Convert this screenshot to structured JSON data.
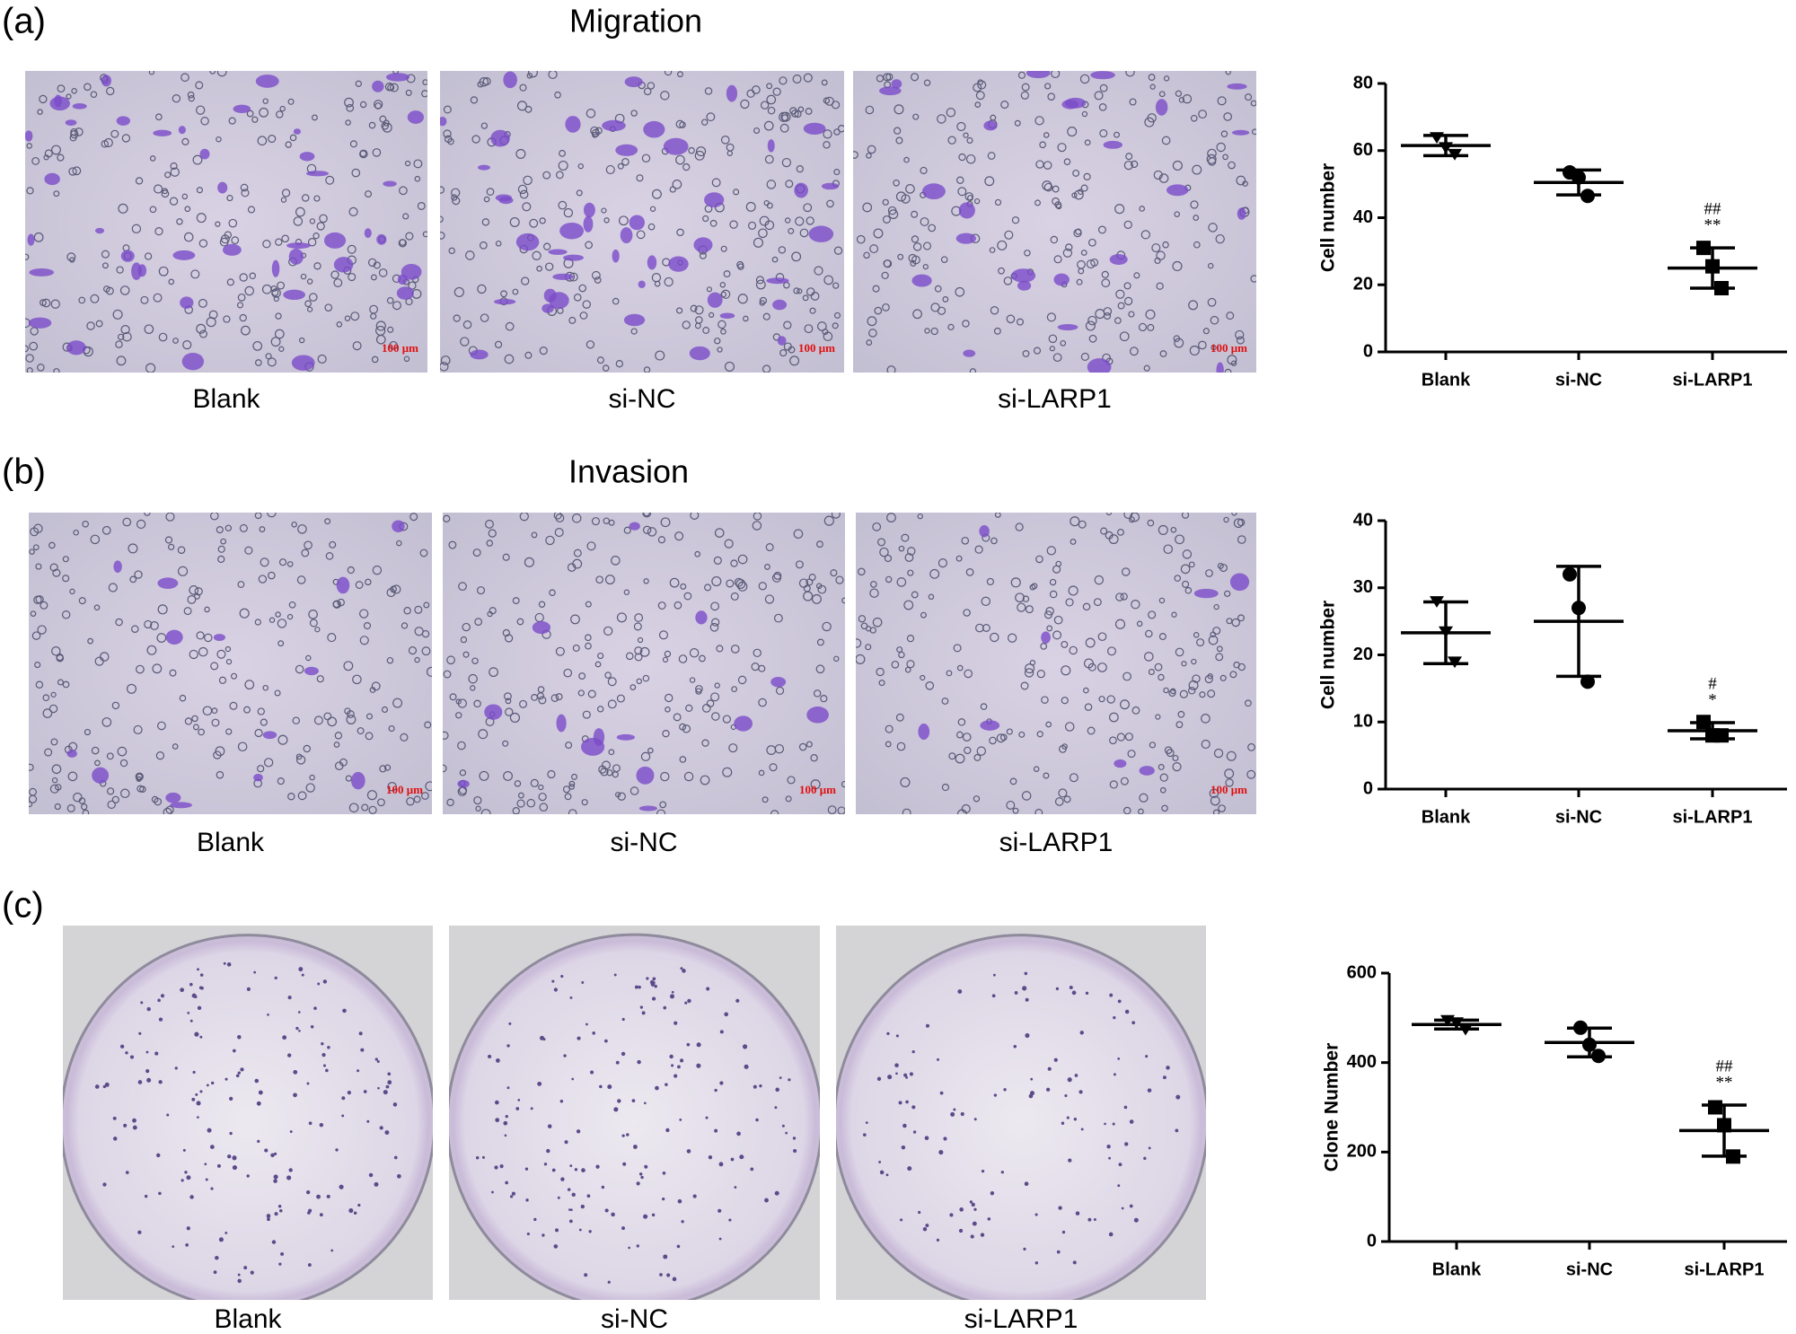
{
  "panels": [
    {
      "label": "(a)",
      "title": "Migration",
      "images": [
        "Blank",
        "si-NC",
        "si-LARP1"
      ],
      "scale_bar": "100 μm"
    },
    {
      "label": "(b)",
      "title": "Invasion",
      "images": [
        "Blank",
        "si-NC",
        "si-LARP1"
      ],
      "scale_bar": "100 μm"
    },
    {
      "label": "(c)",
      "images": [
        "Blank",
        "si-NC",
        "si-LARP1"
      ]
    }
  ],
  "chart_data": [
    {
      "type": "dotplot",
      "ylabel": "Cell number",
      "categories": [
        "Blank",
        "si-NC",
        "si-LARP1"
      ],
      "markers": [
        "triangle",
        "circle",
        "square"
      ],
      "color": "#000000",
      "points": [
        [
          64,
          61,
          59
        ],
        [
          53.5,
          52,
          46.5
        ],
        [
          31,
          25.5,
          19
        ]
      ],
      "mean": [
        61.5,
        50.5,
        25
      ],
      "sd": [
        3,
        3.7,
        6
      ],
      "annotations": [
        {
          "category": "si-LARP1",
          "lines": [
            "##",
            "**"
          ]
        }
      ],
      "ylim": [
        0,
        80
      ],
      "yticks": [
        0,
        20,
        40,
        60,
        80
      ]
    },
    {
      "type": "dotplot",
      "ylabel": "Cell number",
      "categories": [
        "Blank",
        "si-NC",
        "si-LARP1"
      ],
      "markers": [
        "triangle",
        "circle",
        "square"
      ],
      "color": "#000000",
      "points": [
        [
          28,
          23.5,
          19
        ],
        [
          32,
          27,
          16
        ],
        [
          10,
          8,
          8
        ]
      ],
      "mean": [
        23.3,
        25,
        8.7
      ],
      "sd": [
        4.6,
        8.2,
        1.2
      ],
      "annotations": [
        {
          "category": "si-LARP1",
          "lines": [
            "#",
            "*"
          ]
        }
      ],
      "ylim": [
        0,
        40
      ],
      "yticks": [
        0,
        10,
        20,
        30,
        40
      ]
    },
    {
      "type": "dotplot",
      "ylabel": "Clone Number",
      "categories": [
        "Blank",
        "si-NC",
        "si-LARP1"
      ],
      "markers": [
        "triangle",
        "circle",
        "square"
      ],
      "color": "#000000",
      "points": [
        [
          495,
          490,
          475
        ],
        [
          478,
          440,
          415
        ],
        [
          300,
          260,
          190
        ]
      ],
      "mean": [
        485,
        445,
        248
      ],
      "sd": [
        10,
        32,
        57
      ],
      "annotations": [
        {
          "category": "si-LARP1",
          "lines": [
            "##",
            "**"
          ]
        }
      ],
      "ylim": [
        0,
        600
      ],
      "yticks": [
        0,
        200,
        400,
        600
      ]
    }
  ]
}
